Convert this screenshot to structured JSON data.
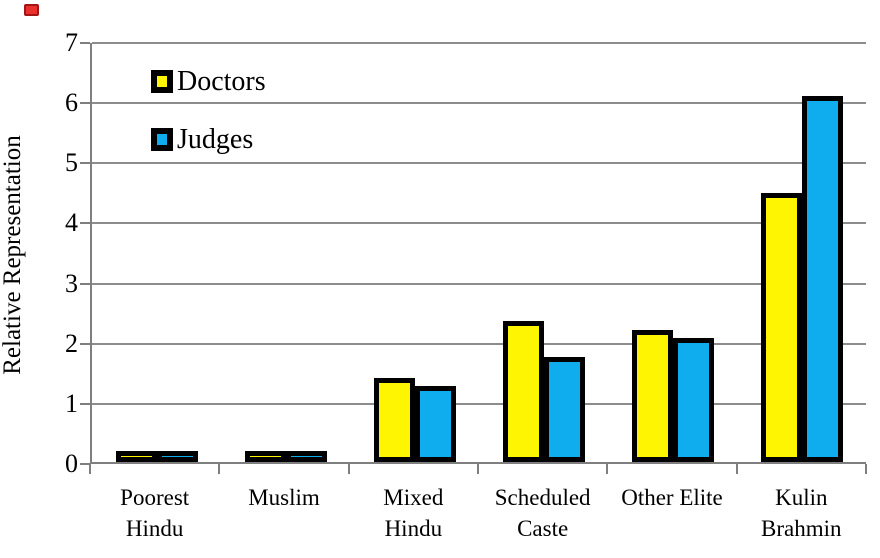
{
  "chart_data": {
    "type": "bar",
    "title": "",
    "xlabel": "",
    "ylabel": "Relative Representation",
    "ylim": [
      0,
      7
    ],
    "yticks": [
      0,
      1,
      2,
      3,
      4,
      5,
      6,
      7
    ],
    "grid": "horizontal",
    "legend_position": "inside-top-left",
    "categories": [
      [
        "Poorest",
        "Hindu"
      ],
      [
        "Muslim"
      ],
      [
        "Mixed",
        "Hindu"
      ],
      [
        "Scheduled",
        "Caste"
      ],
      [
        "Other Elite"
      ],
      [
        "Kulin",
        "Brahmin"
      ]
    ],
    "series": [
      {
        "name": "Doctors",
        "color": "#FEF502",
        "values": [
          0.08,
          0.12,
          1.39,
          2.35,
          2.2,
          4.47
        ]
      },
      {
        "name": "Judges",
        "color": "#0FACEE",
        "values": [
          0.19,
          0.15,
          1.26,
          1.75,
          2.06,
          6.08
        ]
      }
    ]
  },
  "colors": {
    "background": "#FFFFFF",
    "bar_border": "#000000",
    "gridline": "#8C8C8C",
    "axis": "#7F7F7F",
    "text": "#000000",
    "corner_marker": "#E8312C"
  }
}
